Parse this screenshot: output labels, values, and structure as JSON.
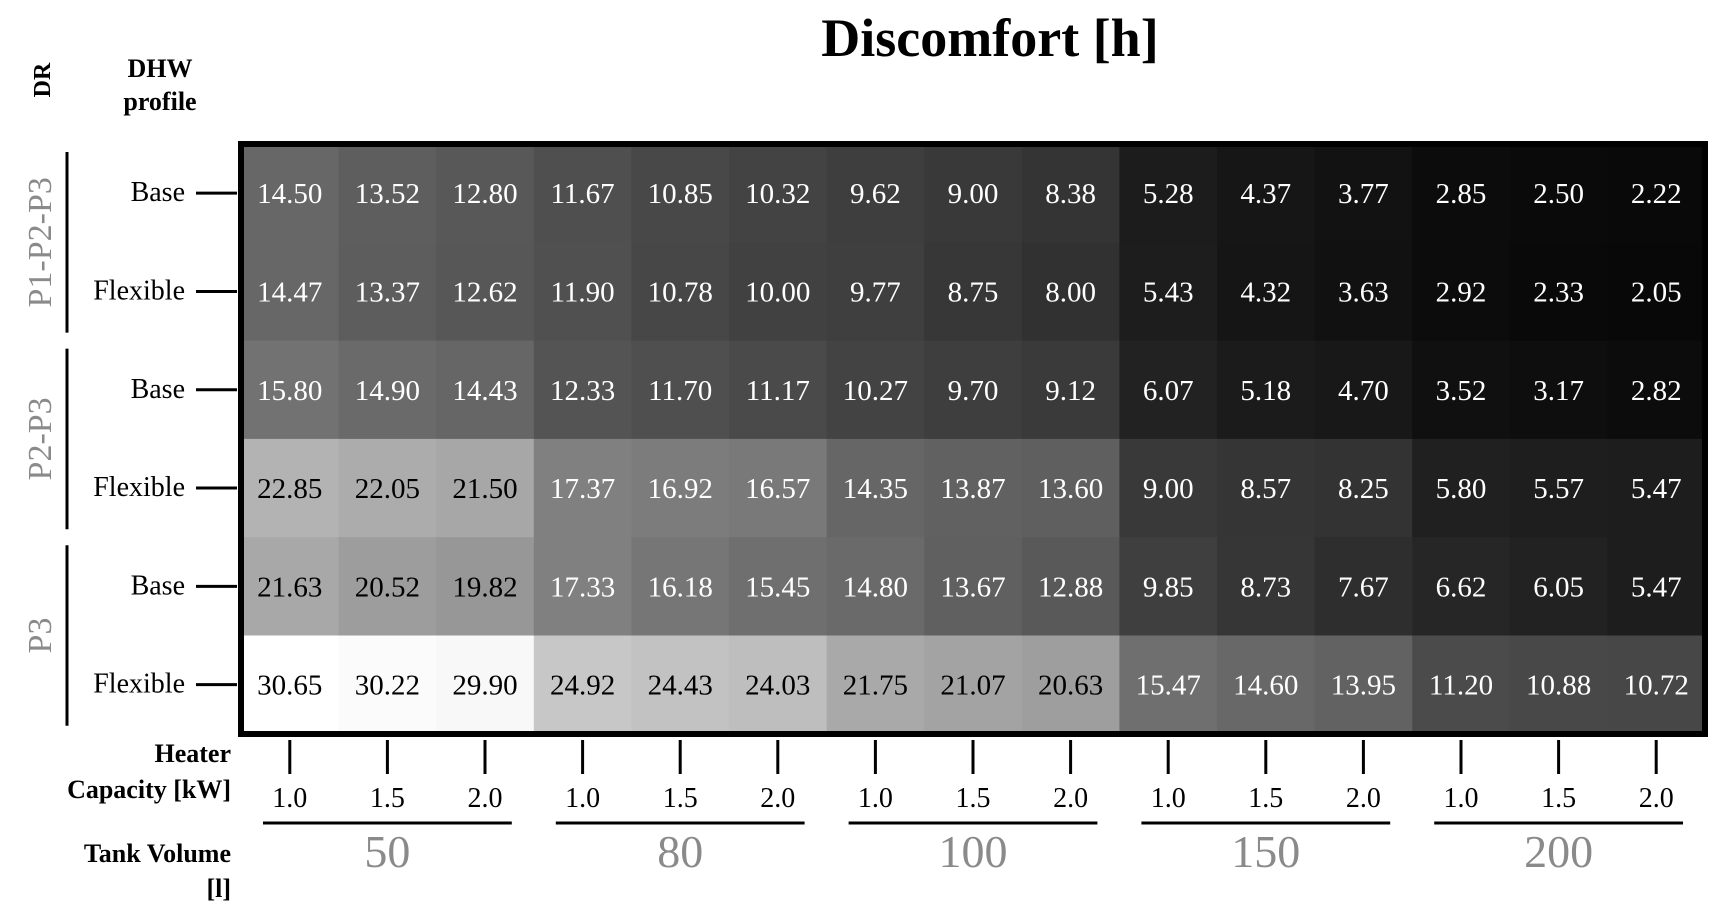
{
  "chart_data": {
    "type": "heatmap",
    "title": "Discomfort [h]",
    "dr_header": "DR",
    "profile_header": "DHW profile",
    "capacity_header": "Heater Capacity [kW]",
    "volume_header": "Tank Volume [l]",
    "row_groups": [
      {
        "label": "P1-P2-P3",
        "rows": [
          "Base",
          "Flexible"
        ]
      },
      {
        "label": "P2-P3",
        "rows": [
          "Base",
          "Flexible"
        ]
      },
      {
        "label": "P3",
        "rows": [
          "Base",
          "Flexible"
        ]
      }
    ],
    "tank_volumes": [
      "50",
      "80",
      "100",
      "150",
      "200"
    ],
    "heater_capacities": [
      "1.0",
      "1.5",
      "2.0"
    ],
    "columns": [
      {
        "volume": "50",
        "capacity": "1.0"
      },
      {
        "volume": "50",
        "capacity": "1.5"
      },
      {
        "volume": "50",
        "capacity": "2.0"
      },
      {
        "volume": "80",
        "capacity": "1.0"
      },
      {
        "volume": "80",
        "capacity": "1.5"
      },
      {
        "volume": "80",
        "capacity": "2.0"
      },
      {
        "volume": "100",
        "capacity": "1.0"
      },
      {
        "volume": "100",
        "capacity": "1.5"
      },
      {
        "volume": "100",
        "capacity": "2.0"
      },
      {
        "volume": "150",
        "capacity": "1.0"
      },
      {
        "volume": "150",
        "capacity": "1.5"
      },
      {
        "volume": "150",
        "capacity": "2.0"
      },
      {
        "volume": "200",
        "capacity": "1.0"
      },
      {
        "volume": "200",
        "capacity": "1.5"
      },
      {
        "volume": "200",
        "capacity": "2.0"
      }
    ],
    "rows": [
      {
        "group": "P1-P2-P3",
        "profile": "Base",
        "values": [
          "14.50",
          "13.52",
          "12.80",
          "11.67",
          "10.85",
          "10.32",
          "9.62",
          "9.00",
          "8.38",
          "5.28",
          "4.37",
          "3.77",
          "2.85",
          "2.50",
          "2.22"
        ]
      },
      {
        "group": "P1-P2-P3",
        "profile": "Flexible",
        "values": [
          "14.47",
          "13.37",
          "12.62",
          "11.90",
          "10.78",
          "10.00",
          "9.77",
          "8.75",
          "8.00",
          "5.43",
          "4.32",
          "3.63",
          "2.92",
          "2.33",
          "2.05"
        ]
      },
      {
        "group": "P2-P3",
        "profile": "Base",
        "values": [
          "15.80",
          "14.90",
          "14.43",
          "12.33",
          "11.70",
          "11.17",
          "10.27",
          "9.70",
          "9.12",
          "6.07",
          "5.18",
          "4.70",
          "3.52",
          "3.17",
          "2.82"
        ]
      },
      {
        "group": "P2-P3",
        "profile": "Flexible",
        "values": [
          "22.85",
          "22.05",
          "21.50",
          "17.37",
          "16.92",
          "16.57",
          "14.35",
          "13.87",
          "13.60",
          "9.00",
          "8.57",
          "8.25",
          "5.80",
          "5.57",
          "5.47"
        ]
      },
      {
        "group": "P3",
        "profile": "Base",
        "values": [
          "21.63",
          "20.52",
          "19.82",
          "17.33",
          "16.18",
          "15.45",
          "14.80",
          "13.67",
          "12.88",
          "9.85",
          "8.73",
          "7.67",
          "6.62",
          "6.05",
          "5.47"
        ]
      },
      {
        "group": "P3",
        "profile": "Flexible",
        "values": [
          "30.65",
          "30.22",
          "29.90",
          "24.92",
          "24.43",
          "24.03",
          "21.75",
          "21.07",
          "20.63",
          "15.47",
          "14.60",
          "13.95",
          "11.20",
          "10.88",
          "10.72"
        ]
      }
    ],
    "colors": {
      "scale_low": "#000000",
      "scale_high": "#ffffff",
      "text_on_light": "#000000",
      "text_on_dark": "#ffffff"
    }
  }
}
